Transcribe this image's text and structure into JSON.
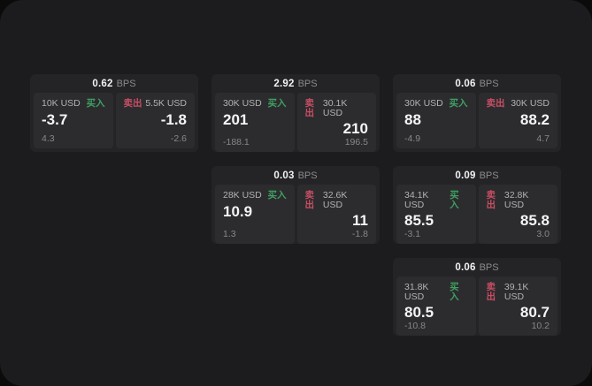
{
  "labels": {
    "bps_unit": "BPS",
    "buy": "买入",
    "sell": "卖出"
  },
  "colors": {
    "buy": "#3fa062",
    "sell": "#c84e63"
  },
  "cards": [
    {
      "bps": "0.62",
      "buy": {
        "notional": "10K USD",
        "value": "-3.7",
        "sub": "4.3"
      },
      "sell": {
        "notional": "5.5K USD",
        "value": "-1.8",
        "sub": "-2.6"
      }
    },
    {
      "bps": "2.92",
      "buy": {
        "notional": "30K USD",
        "value": "201",
        "sub": "-188.1"
      },
      "sell": {
        "notional": "30.1K USD",
        "value": "210",
        "sub": "196.5"
      }
    },
    {
      "bps": "0.06",
      "buy": {
        "notional": "30K USD",
        "value": "88",
        "sub": "-4.9"
      },
      "sell": {
        "notional": "30K USD",
        "value": "88.2",
        "sub": "4.7"
      }
    },
    {
      "bps": "0.03",
      "buy": {
        "notional": "28K USD",
        "value": "10.9",
        "sub": "1.3"
      },
      "sell": {
        "notional": "32.6K USD",
        "value": "11",
        "sub": "-1.8"
      }
    },
    {
      "bps": "0.09",
      "buy": {
        "notional": "34.1K USD",
        "value": "85.5",
        "sub": "-3.1"
      },
      "sell": {
        "notional": "32.8K USD",
        "value": "85.8",
        "sub": "3.0"
      }
    },
    {
      "bps": "0.06",
      "buy": {
        "notional": "31.8K USD",
        "value": "80.5",
        "sub": "-10.8"
      },
      "sell": {
        "notional": "39.1K USD",
        "value": "80.7",
        "sub": "10.2"
      }
    }
  ]
}
